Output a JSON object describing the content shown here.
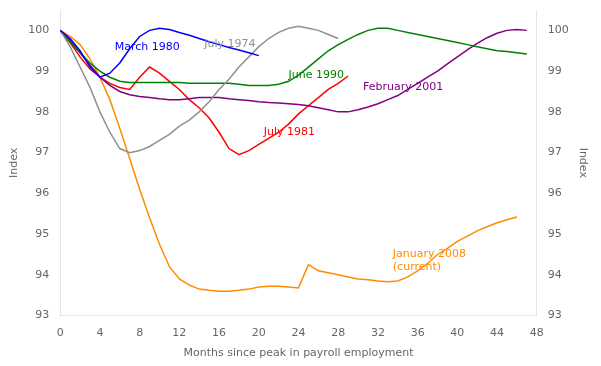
{
  "chart_data": {
    "type": "line",
    "xlabel": "Months since peak in payroll employment",
    "ylabel": "Index",
    "y2label": "Index",
    "xlim": [
      0,
      48
    ],
    "xticks": [
      0,
      4,
      8,
      12,
      16,
      20,
      24,
      28,
      32,
      36,
      40,
      44,
      48
    ],
    "ylim": [
      93,
      100.5
    ],
    "yticks": [
      93,
      94,
      95,
      96,
      97,
      98,
      99,
      100
    ],
    "y2lim": [
      93,
      100.5
    ],
    "y2ticks": [
      93,
      94,
      95,
      96,
      97,
      98,
      99,
      100
    ],
    "grid": false,
    "series": [
      {
        "name": "March 1980",
        "color": "#0000FF",
        "x": [
          0,
          1,
          2,
          3,
          4,
          5,
          6,
          7,
          8,
          9,
          10,
          11,
          12,
          13,
          14,
          15,
          16,
          17,
          18,
          19,
          20
        ],
        "values": [
          100,
          99.8,
          99.5,
          99.1,
          98.85,
          98.95,
          99.2,
          99.55,
          99.85,
          100.0,
          100.05,
          100.02,
          99.95,
          99.88,
          99.8,
          99.72,
          99.65,
          99.58,
          99.52,
          99.45,
          99.38
        ]
      },
      {
        "name": "July 1974",
        "color": "#909090",
        "x": [
          0,
          1,
          2,
          3,
          4,
          5,
          6,
          7,
          8,
          9,
          10,
          11,
          12,
          13,
          14,
          15,
          16,
          17,
          18,
          19,
          20,
          21,
          22,
          23,
          24,
          25,
          26,
          27,
          28
        ],
        "values": [
          100,
          99.6,
          99.1,
          98.6,
          98.0,
          97.5,
          97.1,
          97.0,
          97.05,
          97.15,
          97.3,
          97.45,
          97.65,
          97.8,
          98.0,
          98.25,
          98.55,
          98.8,
          99.1,
          99.35,
          99.6,
          99.8,
          99.95,
          100.05,
          100.1,
          100.05,
          100.0,
          99.9,
          99.8
        ]
      },
      {
        "name": "June 1990",
        "color": "#008000",
        "x": [
          0,
          1,
          2,
          3,
          4,
          5,
          6,
          7,
          8,
          9,
          10,
          11,
          12,
          13,
          14,
          15,
          16,
          17,
          18,
          19,
          20,
          21,
          22,
          23,
          24,
          25,
          26,
          27,
          28,
          29,
          30,
          31,
          32,
          33,
          34,
          35,
          36,
          37,
          38,
          39,
          40,
          41,
          42,
          43,
          44,
          45,
          46,
          47
        ],
        "values": [
          100,
          99.7,
          99.45,
          99.2,
          99.0,
          98.85,
          98.75,
          98.72,
          98.72,
          98.72,
          98.72,
          98.72,
          98.72,
          98.7,
          98.7,
          98.7,
          98.7,
          98.7,
          98.68,
          98.65,
          98.65,
          98.65,
          98.68,
          98.75,
          98.9,
          99.1,
          99.3,
          99.5,
          99.65,
          99.78,
          99.9,
          100.0,
          100.05,
          100.05,
          100.0,
          99.95,
          99.9,
          99.85,
          99.8,
          99.75,
          99.7,
          99.65,
          99.6,
          99.55,
          99.5,
          99.48,
          99.45,
          99.42
        ]
      },
      {
        "name": "February 2001",
        "color": "#800080",
        "x": [
          0,
          1,
          2,
          3,
          4,
          5,
          6,
          7,
          8,
          9,
          10,
          11,
          12,
          13,
          14,
          15,
          16,
          17,
          18,
          19,
          20,
          21,
          22,
          23,
          24,
          25,
          26,
          27,
          28,
          29,
          30,
          31,
          32,
          33,
          34,
          35,
          36,
          37,
          38,
          39,
          40,
          41,
          42,
          43,
          44,
          45,
          46,
          47
        ],
        "values": [
          100,
          99.75,
          99.45,
          99.15,
          98.85,
          98.65,
          98.5,
          98.42,
          98.38,
          98.35,
          98.32,
          98.3,
          98.3,
          98.32,
          98.35,
          98.35,
          98.35,
          98.32,
          98.3,
          98.28,
          98.25,
          98.23,
          98.22,
          98.2,
          98.18,
          98.15,
          98.1,
          98.05,
          98.0,
          98.0,
          98.05,
          98.12,
          98.2,
          98.3,
          98.4,
          98.55,
          98.7,
          98.85,
          99.0,
          99.18,
          99.35,
          99.52,
          99.68,
          99.82,
          99.93,
          100.0,
          100.02,
          100.0
        ]
      },
      {
        "name": "July 1981",
        "color": "#FF0000",
        "x": [
          0,
          1,
          2,
          3,
          4,
          5,
          6,
          7,
          8,
          9,
          10,
          11,
          12,
          13,
          14,
          15,
          16,
          17,
          18,
          19,
          20,
          21,
          22,
          23,
          24,
          25,
          26,
          27,
          28,
          29
        ],
        "values": [
          100,
          99.7,
          99.35,
          99.05,
          98.85,
          98.7,
          98.6,
          98.55,
          98.85,
          99.1,
          98.95,
          98.75,
          98.55,
          98.3,
          98.1,
          97.85,
          97.5,
          97.1,
          96.95,
          97.05,
          97.2,
          97.35,
          97.5,
          97.7,
          97.95,
          98.15,
          98.35,
          98.55,
          98.7,
          98.88
        ]
      },
      {
        "name": "January 2008\n(current)",
        "color": "#FF8C00",
        "x": [
          0,
          1,
          2,
          3,
          4,
          5,
          6,
          7,
          8,
          9,
          10,
          11,
          12,
          13,
          14,
          15,
          16,
          17,
          18,
          19,
          20,
          21,
          22,
          23,
          24,
          25,
          26,
          27,
          28,
          29,
          30,
          31,
          32,
          33,
          34,
          35,
          36,
          37,
          38,
          39,
          40,
          41,
          42,
          43,
          44,
          45,
          46
        ],
        "values": [
          100,
          99.85,
          99.65,
          99.3,
          98.85,
          98.3,
          97.6,
          96.85,
          96.1,
          95.4,
          94.75,
          94.2,
          93.9,
          93.75,
          93.65,
          93.62,
          93.6,
          93.6,
          93.62,
          93.65,
          93.7,
          93.72,
          93.72,
          93.7,
          93.68,
          94.25,
          94.1,
          94.05,
          94.0,
          93.95,
          93.9,
          93.88,
          93.85,
          93.83,
          93.85,
          93.95,
          94.1,
          94.28,
          94.5,
          94.65,
          94.82,
          94.95,
          95.08,
          95.18,
          95.28,
          95.35,
          95.42
        ]
      }
    ],
    "annotations": [
      {
        "text": "March 1980",
        "x": 5.5,
        "y": 99.6,
        "color": "#0000FF"
      },
      {
        "text": "July 1974",
        "x": 14.5,
        "y": 99.65,
        "color": "#909090"
      },
      {
        "text": "June 1990",
        "x": 23.0,
        "y": 98.9,
        "color": "#008000"
      },
      {
        "text": "February 2001",
        "x": 30.5,
        "y": 98.6,
        "color": "#800080"
      },
      {
        "text": "July 1981",
        "x": 20.5,
        "y": 97.5,
        "color": "#FF0000"
      },
      {
        "text": "January 2008\n(current)",
        "x": 33.5,
        "y": 94.35,
        "color": "#FF8C00"
      }
    ]
  }
}
